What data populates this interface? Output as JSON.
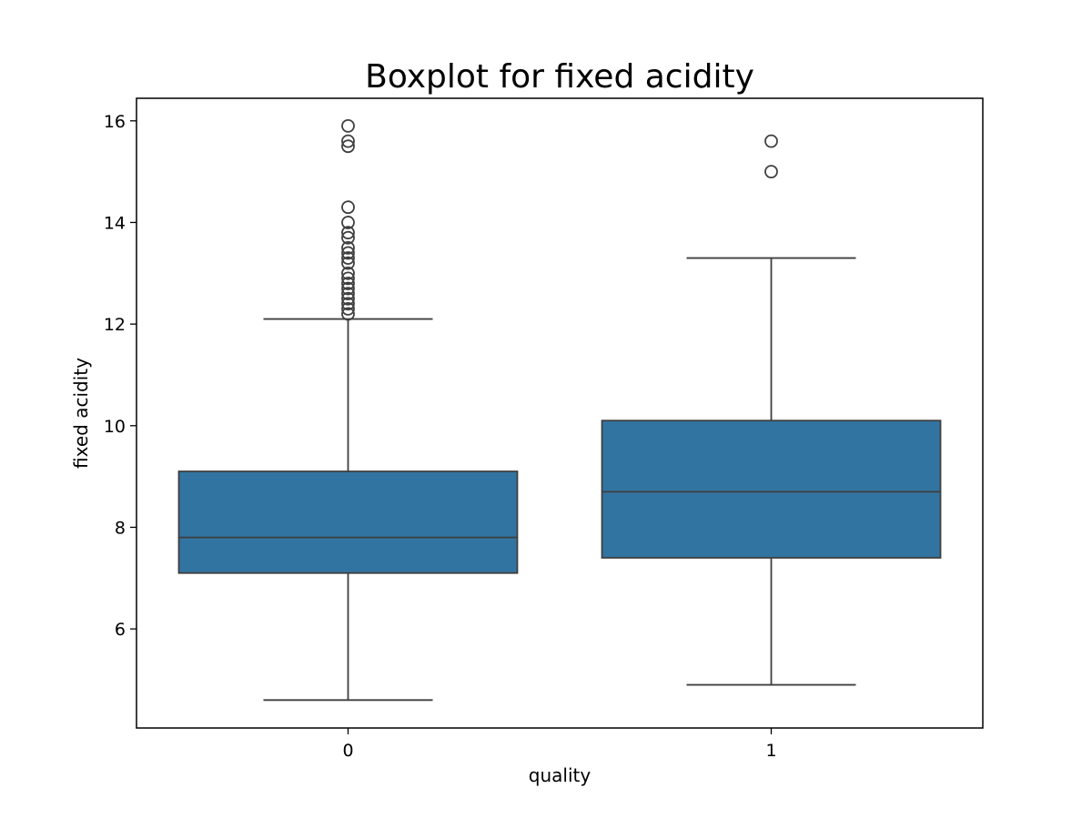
{
  "chart_data": {
    "type": "boxplot",
    "title": "Boxplot for fixed acidity",
    "xlabel": "quality",
    "ylabel": "fixed acidity",
    "categories": [
      "0",
      "1"
    ],
    "ylim": [
      4.05,
      16.5
    ],
    "yticks": [
      6,
      8,
      10,
      12,
      14,
      16
    ],
    "grid": false,
    "box_color": "#3274a1",
    "line_color": "#3f3f3f",
    "boxes": [
      {
        "category": "0",
        "whisker_low": 4.6,
        "q1": 7.1,
        "median": 7.8,
        "q3": 9.1,
        "whisker_high": 12.1,
        "outliers": [
          12.2,
          12.3,
          12.4,
          12.5,
          12.6,
          12.7,
          12.8,
          12.9,
          13.0,
          13.2,
          13.3,
          13.4,
          13.5,
          13.7,
          13.8,
          14.0,
          14.3,
          15.5,
          15.6,
          15.9
        ]
      },
      {
        "category": "1",
        "whisker_low": 4.9,
        "q1": 7.4,
        "median": 8.7,
        "q3": 10.1,
        "whisker_high": 13.3,
        "outliers": [
          15.0,
          15.6
        ]
      }
    ]
  }
}
